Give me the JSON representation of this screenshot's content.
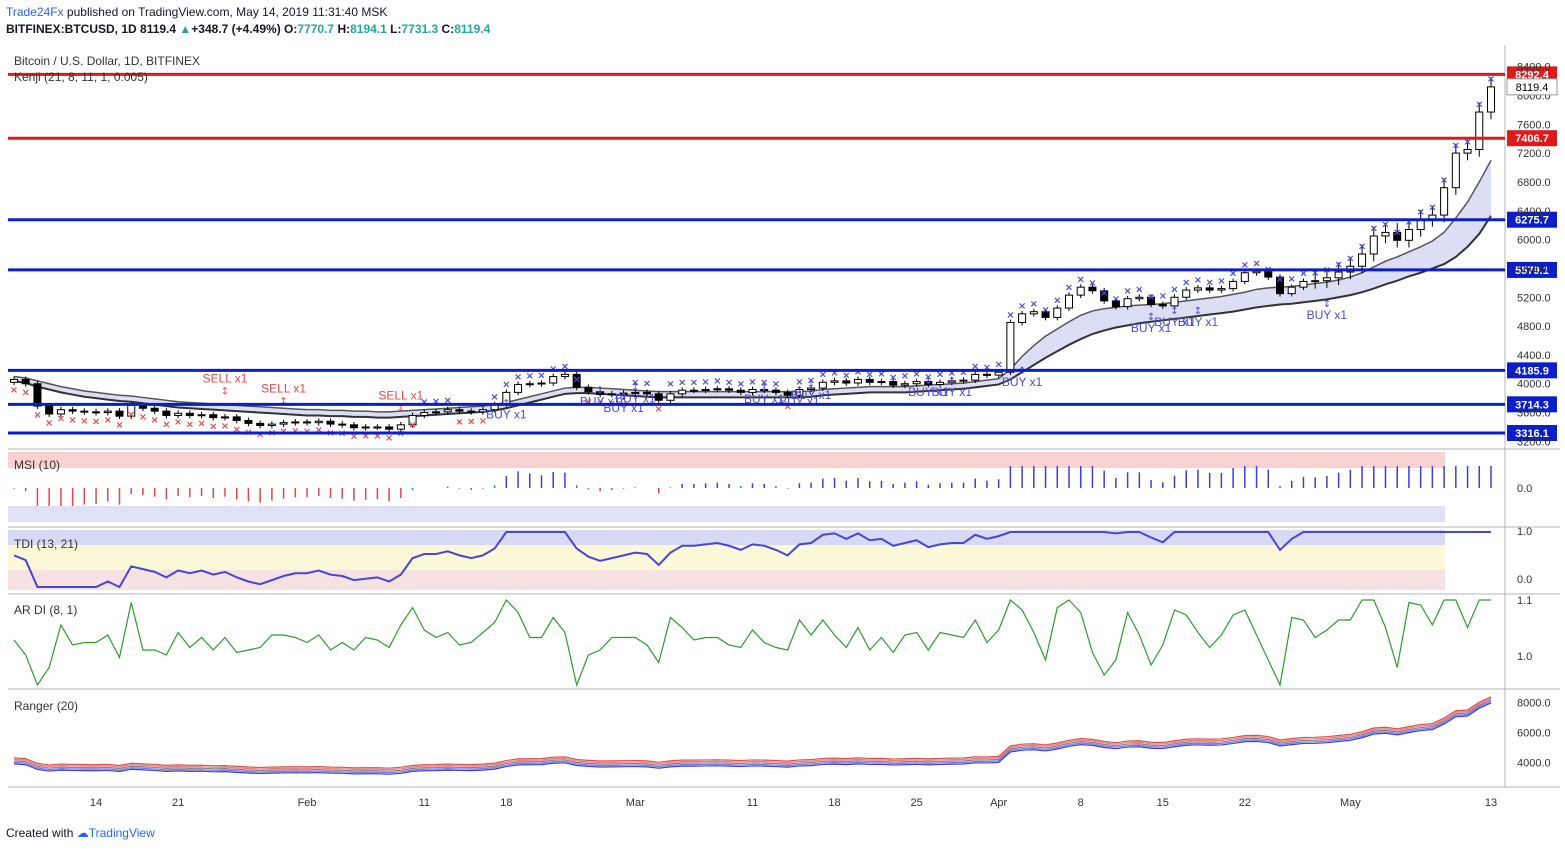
{
  "header": {
    "publisher": "Trade24Fx",
    "published_text": " published on TradingView.com, May 14, 2019 11:31:40 MSK",
    "symbol": "BITFINEX:BTCUSD, 1D",
    "last": "8119.4",
    "change_arrow": "▲",
    "change": "+348.7 (+4.49%)",
    "o_label": "O:",
    "o": "7770.7",
    "h_label": "H:",
    "h": "8194.1",
    "l_label": "L:",
    "l": "7731.3",
    "c_label": "C:",
    "c": "8119.4"
  },
  "footer": {
    "created_with": "Created with",
    "brand": "TradingView"
  },
  "colors": {
    "bg": "#ffffff",
    "red_line": "#e0191b",
    "blue_line": "#0c1ecc",
    "bull_marker": "#4a4ae0",
    "bear_marker": "#e84b4b",
    "band_fill": "#d8daf5",
    "msi_band": "#f7c6c6",
    "tdi_band_top": "#f6e2e2"
  },
  "chart_data": {
    "type": "candlestick",
    "title": "Bitcoin / U.S. Dollar, 1D, BITFINEX",
    "indicator_label": "Kenji (21, 8, 11, 1, 0.005)",
    "ylim": [
      3150,
      8700
    ],
    "y_ticks": [
      "8400.0",
      "8000.0",
      "7600.0",
      "7200.0",
      "6800.0",
      "6400.0",
      "6000.0",
      "5600.0",
      "5200.0",
      "4800.0",
      "4400.0",
      "4000.0",
      "3600.0",
      "3200.0"
    ],
    "last_price_label": "8119.4",
    "x_ticks": [
      {
        "label": "14",
        "i": 7
      },
      {
        "label": "21",
        "i": 14
      },
      {
        "label": "Feb",
        "i": 25
      },
      {
        "label": "11",
        "i": 35
      },
      {
        "label": "18",
        "i": 42
      },
      {
        "label": "Mar",
        "i": 53
      },
      {
        "label": "11",
        "i": 63
      },
      {
        "label": "18",
        "i": 70
      },
      {
        "label": "25",
        "i": 77
      },
      {
        "label": "Apr",
        "i": 84
      },
      {
        "label": "8",
        "i": 91
      },
      {
        "label": "15",
        "i": 98
      },
      {
        "label": "22",
        "i": 105
      },
      {
        "label": "May",
        "i": 114
      },
      {
        "label": "13",
        "i": 126
      }
    ],
    "horizontal_levels": [
      {
        "value": 8292.4,
        "label": "8292.4",
        "color": "#e0191b"
      },
      {
        "value": 7406.7,
        "label": "7406.7",
        "color": "#e0191b"
      },
      {
        "value": 6275.7,
        "label": "6275.7",
        "color": "#0c1ecc"
      },
      {
        "value": 5579.1,
        "label": "5579.1",
        "color": "#0c1ecc"
      },
      {
        "value": 4185.9,
        "label": "4185.9",
        "color": "#0c1ecc"
      },
      {
        "value": 3714.3,
        "label": "3714.3",
        "color": "#0c1ecc"
      },
      {
        "value": 3316.1,
        "label": "3316.1",
        "color": "#0c1ecc"
      }
    ],
    "close_series": [
      4060,
      4000,
      3690,
      3580,
      3640,
      3620,
      3610,
      3600,
      3620,
      3550,
      3700,
      3660,
      3620,
      3560,
      3590,
      3560,
      3570,
      3530,
      3540,
      3490,
      3450,
      3420,
      3440,
      3460,
      3470,
      3460,
      3480,
      3440,
      3430,
      3390,
      3400,
      3400,
      3370,
      3430,
      3560,
      3600,
      3610,
      3640,
      3620,
      3610,
      3640,
      3710,
      3880,
      3990,
      4000,
      4010,
      4100,
      4130,
      3950,
      3890,
      3850,
      3860,
      3870,
      3880,
      3860,
      3770,
      3860,
      3910,
      3910,
      3920,
      3930,
      3910,
      3880,
      3920,
      3910,
      3880,
      3840,
      3920,
      3940,
      4020,
      4040,
      4010,
      4060,
      4020,
      4030,
      3980,
      4000,
      4030,
      3990,
      4020,
      4040,
      4050,
      4130,
      4120,
      4160,
      4850,
      4970,
      5000,
      4920,
      5050,
      5230,
      5340,
      5290,
      5150,
      5070,
      5180,
      5200,
      5100,
      5080,
      5200,
      5300,
      5330,
      5300,
      5320,
      5420,
      5540,
      5560,
      5480,
      5250,
      5340,
      5420,
      5430,
      5470,
      5550,
      5630,
      5800,
      6050,
      6100,
      5990,
      6140,
      6280,
      6340,
      6720,
      7200,
      7250,
      7770,
      8119
    ],
    "upper_band": [
      4100,
      4080,
      4040,
      4000,
      3960,
      3930,
      3900,
      3880,
      3860,
      3840,
      3830,
      3810,
      3790,
      3770,
      3750,
      3740,
      3730,
      3720,
      3710,
      3700,
      3690,
      3680,
      3670,
      3660,
      3650,
      3640,
      3640,
      3630,
      3630,
      3620,
      3620,
      3610,
      3610,
      3620,
      3630,
      3640,
      3650,
      3660,
      3670,
      3680,
      3690,
      3710,
      3740,
      3780,
      3820,
      3860,
      3900,
      3940,
      3950,
      3950,
      3940,
      3930,
      3920,
      3910,
      3900,
      3890,
      3890,
      3890,
      3890,
      3890,
      3890,
      3890,
      3890,
      3890,
      3890,
      3890,
      3890,
      3890,
      3900,
      3920,
      3930,
      3940,
      3950,
      3960,
      3960,
      3960,
      3960,
      3970,
      3980,
      3990,
      4000,
      4010,
      4030,
      4050,
      4070,
      4200,
      4380,
      4530,
      4660,
      4760,
      4860,
      4950,
      5010,
      5040,
      5060,
      5080,
      5090,
      5100,
      5110,
      5130,
      5150,
      5170,
      5190,
      5210,
      5240,
      5270,
      5310,
      5330,
      5340,
      5350,
      5370,
      5390,
      5410,
      5440,
      5480,
      5540,
      5620,
      5700,
      5760,
      5830,
      5900,
      5980,
      6100,
      6300,
      6520,
      6800,
      7100
    ],
    "lower_band": [
      4040,
      4010,
      3960,
      3920,
      3880,
      3850,
      3820,
      3800,
      3780,
      3760,
      3750,
      3730,
      3710,
      3690,
      3670,
      3660,
      3650,
      3640,
      3630,
      3620,
      3610,
      3600,
      3590,
      3580,
      3570,
      3560,
      3560,
      3550,
      3550,
      3540,
      3540,
      3530,
      3530,
      3540,
      3550,
      3560,
      3570,
      3580,
      3590,
      3600,
      3610,
      3630,
      3660,
      3700,
      3740,
      3780,
      3820,
      3860,
      3870,
      3870,
      3860,
      3850,
      3840,
      3830,
      3820,
      3810,
      3810,
      3810,
      3810,
      3810,
      3810,
      3810,
      3810,
      3810,
      3810,
      3810,
      3810,
      3810,
      3820,
      3840,
      3850,
      3860,
      3870,
      3880,
      3880,
      3880,
      3880,
      3890,
      3900,
      3910,
      3920,
      3930,
      3950,
      3970,
      3990,
      4060,
      4160,
      4260,
      4360,
      4450,
      4540,
      4620,
      4690,
      4740,
      4780,
      4810,
      4840,
      4860,
      4880,
      4900,
      4920,
      4940,
      4960,
      4980,
      5000,
      5030,
      5060,
      5080,
      5100,
      5110,
      5130,
      5150,
      5170,
      5200,
      5230,
      5270,
      5320,
      5380,
      5430,
      5490,
      5540,
      5600,
      5660,
      5760,
      5900,
      6080,
      6330
    ],
    "signals": [
      {
        "text": "SELL x1",
        "i": 18,
        "value": 4020,
        "side": "sell"
      },
      {
        "text": "SELL x1",
        "i": 23,
        "value": 3880,
        "side": "sell"
      },
      {
        "text": "SELL x1",
        "i": 33,
        "value": 3780,
        "side": "sell"
      },
      {
        "text": "BUY x1",
        "i": 42,
        "value": 3520,
        "side": "buy"
      },
      {
        "text": "BUY x1",
        "i": 50,
        "value": 3700,
        "side": "buy"
      },
      {
        "text": "BUY x1",
        "i": 52,
        "value": 3610,
        "side": "buy"
      },
      {
        "text": "BUY x1",
        "i": 53,
        "value": 3740,
        "side": "buy"
      },
      {
        "text": "BUY x1",
        "i": 64,
        "value": 3730,
        "side": "buy"
      },
      {
        "text": "BUY x1",
        "i": 67,
        "value": 3700,
        "side": "buy"
      },
      {
        "text": "BUY x1",
        "i": 68,
        "value": 3790,
        "side": "buy"
      },
      {
        "text": "BUY x1",
        "i": 78,
        "value": 3830,
        "side": "buy"
      },
      {
        "text": "BUY x1",
        "i": 80,
        "value": 3830,
        "side": "buy"
      },
      {
        "text": "BUY x1",
        "i": 86,
        "value": 3970,
        "side": "buy"
      },
      {
        "text": "BUY x1",
        "i": 97,
        "value": 4720,
        "side": "buy"
      },
      {
        "text": "BUY x1",
        "i": 99,
        "value": 4800,
        "side": "buy"
      },
      {
        "text": "BUY x1",
        "i": 101,
        "value": 4800,
        "side": "buy"
      },
      {
        "text": "BUY x1",
        "i": 112,
        "value": 4900,
        "side": "buy"
      }
    ]
  },
  "panels": {
    "msi": {
      "label": "MSI (10)",
      "tick": "0.0"
    },
    "tdi": {
      "label": "TDI (13, 21)",
      "tick_top": "1.0",
      "tick_bottom": "0.0"
    },
    "ardi": {
      "label": "AR DI (8, 1)",
      "tick_top": "1.1",
      "tick_bottom": "1.0"
    },
    "ranger": {
      "label": "Ranger (20)",
      "ticks": [
        "8000.0",
        "6000.0",
        "4000.0"
      ]
    }
  }
}
